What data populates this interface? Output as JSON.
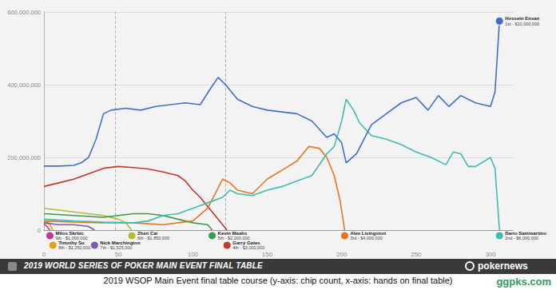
{
  "chart_data": {
    "type": "line",
    "title": "2019 WORLD SERIES OF POKER MAIN EVENT FINAL TABLE",
    "brand": "pokernews",
    "caption": "2019 WSOP Main Event final table course (y-axis: chip count, x-axis: hands on final table)",
    "watermark": "ggpks.com",
    "xlim": [
      0,
      315
    ],
    "xticks": [
      0,
      50,
      100,
      150,
      200,
      250,
      300
    ],
    "ylim": [
      0,
      600000000
    ],
    "yticks": [
      0,
      {
        "value": 200000000,
        "label": "200,000,000"
      },
      {
        "value": 400000000,
        "label": "400,000,000"
      },
      {
        "value": 600000000,
        "label": "600,000,000"
      }
    ],
    "grid": true,
    "dashed_lines_x": [
      48,
      122
    ],
    "series": [
      {
        "name": "Milos Skrbic",
        "result": "9th - $1,000,000",
        "color": "#c0399a",
        "x": [
          0,
          2,
          4
        ],
        "values": [
          17000000,
          10000000,
          0
        ]
      },
      {
        "name": "Timothy Su",
        "result": "8th - $1,250,000",
        "color": "#e3a21a",
        "x": [
          0,
          3,
          6
        ],
        "values": [
          20000000,
          22000000,
          0
        ]
      },
      {
        "name": "Nick Marchington",
        "result": "7th - $1,525,000",
        "color": "#7c5cb0",
        "x": [
          0,
          10,
          20,
          30,
          34
        ],
        "values": [
          20000000,
          15000000,
          15000000,
          10000000,
          0
        ]
      },
      {
        "name": "Zhen Cai",
        "result": "6th - $1,850,000",
        "color": "#b5b83a",
        "x": [
          0,
          10,
          20,
          30,
          40,
          50,
          55,
          59
        ],
        "values": [
          60000000,
          55000000,
          50000000,
          45000000,
          40000000,
          30000000,
          20000000,
          0
        ]
      },
      {
        "name": "Kevin Maahs",
        "result": "5th - $2,200,000",
        "color": "#3b9b50",
        "x": [
          0,
          20,
          40,
          50,
          60,
          70,
          80,
          90,
          100,
          110,
          113
        ],
        "values": [
          45000000,
          40000000,
          35000000,
          40000000,
          45000000,
          45000000,
          40000000,
          30000000,
          20000000,
          15000000,
          0
        ]
      },
      {
        "name": "Garry Gates",
        "result": "4th - $3,000,000",
        "color": "#c0392b",
        "x": [
          0,
          10,
          20,
          30,
          40,
          50,
          60,
          70,
          80,
          90,
          95,
          100,
          105,
          110,
          115,
          120,
          123
        ],
        "values": [
          120000000,
          130000000,
          140000000,
          155000000,
          170000000,
          175000000,
          172000000,
          168000000,
          160000000,
          150000000,
          135000000,
          110000000,
          90000000,
          65000000,
          40000000,
          15000000,
          0
        ]
      },
      {
        "name": "Alex Livingston",
        "result": "3rd - $4,000,000",
        "color": "#e8741e",
        "x": [
          0,
          20,
          40,
          60,
          80,
          100,
          110,
          115,
          120,
          125,
          130,
          140,
          150,
          160,
          170,
          178,
          185,
          190,
          195,
          199,
          202
        ],
        "values": [
          25000000,
          22000000,
          20000000,
          20000000,
          15000000,
          25000000,
          60000000,
          100000000,
          140000000,
          130000000,
          110000000,
          100000000,
          140000000,
          165000000,
          190000000,
          230000000,
          225000000,
          200000000,
          150000000,
          80000000,
          0
        ]
      },
      {
        "name": "Dario Sammartino",
        "result": "2nd - $6,000,000",
        "color": "#3fbcae",
        "x": [
          0,
          20,
          40,
          60,
          70,
          80,
          90,
          100,
          110,
          120,
          125,
          130,
          140,
          150,
          160,
          170,
          180,
          190,
          195,
          200,
          203,
          208,
          212,
          220,
          230,
          240,
          250,
          260,
          270,
          275,
          280,
          285,
          290,
          300,
          303,
          306
        ],
        "values": [
          30000000,
          25000000,
          22000000,
          20000000,
          25000000,
          40000000,
          45000000,
          60000000,
          75000000,
          90000000,
          110000000,
          100000000,
          95000000,
          110000000,
          120000000,
          135000000,
          150000000,
          210000000,
          230000000,
          300000000,
          360000000,
          330000000,
          295000000,
          260000000,
          250000000,
          235000000,
          215000000,
          200000000,
          180000000,
          215000000,
          210000000,
          175000000,
          175000000,
          200000000,
          170000000,
          0
        ]
      },
      {
        "name": "Hossein Ensan",
        "result": "1st - $10,000,000",
        "color": "#3f6fc8",
        "x": [
          0,
          10,
          20,
          25,
          30,
          35,
          40,
          45,
          55,
          65,
          75,
          85,
          95,
          105,
          112,
          117,
          122,
          130,
          140,
          150,
          160,
          170,
          180,
          190,
          195,
          200,
          203,
          210,
          220,
          230,
          240,
          250,
          258,
          265,
          272,
          280,
          290,
          300,
          303,
          306
        ],
        "values": [
          176000000,
          176000000,
          178000000,
          185000000,
          200000000,
          250000000,
          320000000,
          330000000,
          335000000,
          330000000,
          340000000,
          345000000,
          350000000,
          345000000,
          390000000,
          420000000,
          400000000,
          360000000,
          340000000,
          330000000,
          325000000,
          320000000,
          300000000,
          255000000,
          265000000,
          240000000,
          185000000,
          210000000,
          290000000,
          320000000,
          350000000,
          365000000,
          330000000,
          370000000,
          340000000,
          370000000,
          350000000,
          340000000,
          380000000,
          575000000
        ]
      }
    ]
  }
}
